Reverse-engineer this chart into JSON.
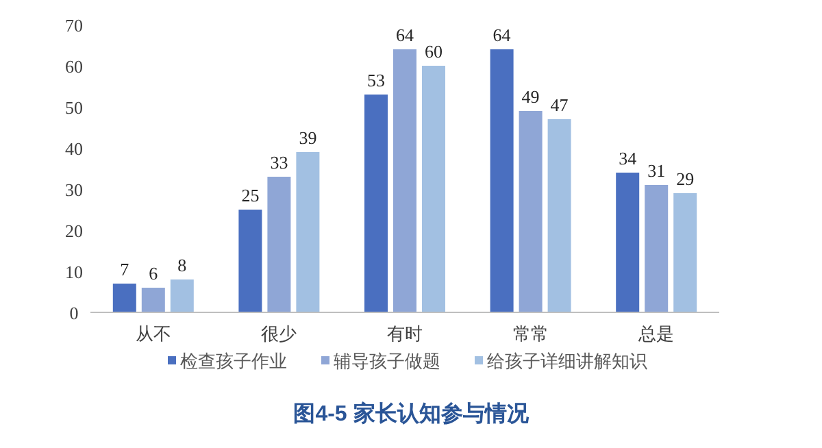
{
  "chart_data": {
    "type": "bar",
    "title": "图4-5 家长认知参与情况",
    "categories": [
      "从不",
      "很少",
      "有时",
      "常常",
      "总是"
    ],
    "series": [
      {
        "name": "检查孩子作业",
        "color": "#4a6fc0",
        "values": [
          7,
          25,
          53,
          64,
          34
        ]
      },
      {
        "name": "辅导孩子做题",
        "color": "#8fa6d6",
        "values": [
          6,
          33,
          64,
          49,
          31
        ]
      },
      {
        "name": "给孩子详细讲解知识",
        "color": "#a2c0e2",
        "values": [
          8,
          39,
          60,
          47,
          29
        ]
      }
    ],
    "ylim": [
      0,
      70
    ],
    "yticks": [
      0,
      10,
      20,
      30,
      40,
      50,
      60,
      70
    ],
    "data_labels": true,
    "legend": "bottom"
  }
}
